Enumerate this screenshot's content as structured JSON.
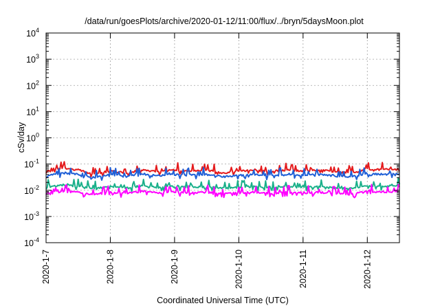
{
  "chart_data": {
    "type": "line",
    "title": "/data/run/goesPlots/archive/2020-01-12/11:00/flux/../bryn/5daysMoon.plot",
    "xlabel": "Coordinated Universal Time (UTC)",
    "ylabel": "cSv/day",
    "y_scale": "log",
    "ylim": [
      0.0001,
      10000
    ],
    "y_ticks": [
      {
        "value": 0.0001,
        "base": "10",
        "exp": "-4"
      },
      {
        "value": 0.001,
        "base": "10",
        "exp": "-3"
      },
      {
        "value": 0.01,
        "base": "10",
        "exp": "-2"
      },
      {
        "value": 0.1,
        "base": "10",
        "exp": "-1"
      },
      {
        "value": 1,
        "base": "10",
        "exp": "0"
      },
      {
        "value": 10,
        "base": "10",
        "exp": "1"
      },
      {
        "value": 100,
        "base": "10",
        "exp": "2"
      },
      {
        "value": 1000,
        "base": "10",
        "exp": "3"
      },
      {
        "value": 10000,
        "base": "10",
        "exp": "4"
      }
    ],
    "xlim_days": [
      0,
      5.5
    ],
    "x_ticks": [
      {
        "label": "2020-1-7",
        "day": 0
      },
      {
        "label": "2020-1-8",
        "day": 1
      },
      {
        "label": "2020-1-9",
        "day": 2
      },
      {
        "label": "2020-1-10",
        "day": 3
      },
      {
        "label": "2020-1-11",
        "day": 4
      },
      {
        "label": "2020-1-12",
        "day": 5
      }
    ],
    "grid": true,
    "series": [
      {
        "color": "#e41a1c",
        "x": [
          0,
          0.25,
          0.5,
          0.75,
          1,
          1.25,
          1.5,
          1.75,
          2,
          2.25,
          2.5,
          2.75,
          3,
          3.25,
          3.5,
          3.75,
          4,
          4.25,
          4.5,
          4.75,
          5,
          5.25,
          5.5
        ],
        "y": [
          0.05,
          0.07,
          0.06,
          0.04,
          0.055,
          0.045,
          0.06,
          0.05,
          0.06,
          0.055,
          0.06,
          0.045,
          0.055,
          0.06,
          0.05,
          0.06,
          0.055,
          0.06,
          0.05,
          0.045,
          0.065,
          0.06,
          0.07
        ]
      },
      {
        "color": "#1f5fd6",
        "x": [
          0,
          0.25,
          0.5,
          0.75,
          1,
          1.25,
          1.5,
          1.75,
          2,
          2.25,
          2.5,
          2.75,
          3,
          3.25,
          3.5,
          3.75,
          4,
          4.25,
          4.5,
          4.75,
          5,
          5.25,
          5.5
        ],
        "y": [
          0.035,
          0.045,
          0.04,
          0.03,
          0.04,
          0.033,
          0.042,
          0.036,
          0.04,
          0.038,
          0.04,
          0.033,
          0.037,
          0.04,
          0.035,
          0.04,
          0.037,
          0.04,
          0.035,
          0.032,
          0.045,
          0.04,
          0.045
        ]
      },
      {
        "color": "#1ab08a",
        "x": [
          0,
          0.25,
          0.5,
          0.75,
          1,
          1.25,
          1.5,
          1.75,
          2,
          2.25,
          2.5,
          2.75,
          3,
          3.25,
          3.5,
          3.75,
          4,
          4.25,
          4.5,
          4.75,
          5,
          5.25,
          5.5
        ],
        "y": [
          0.013,
          0.016,
          0.014,
          0.012,
          0.014,
          0.012,
          0.015,
          0.013,
          0.014,
          0.013,
          0.014,
          0.012,
          0.013,
          0.014,
          0.012,
          0.014,
          0.013,
          0.014,
          0.012,
          0.012,
          0.015,
          0.014,
          0.016
        ]
      },
      {
        "color": "#ff00ff",
        "x": [
          0,
          0.25,
          0.5,
          0.75,
          1,
          1.25,
          1.5,
          1.75,
          2,
          2.25,
          2.5,
          2.75,
          3,
          3.25,
          3.5,
          3.75,
          4,
          4.25,
          4.5,
          4.75,
          5,
          5.25,
          5.5
        ],
        "y": [
          0.008,
          0.009,
          0.0085,
          0.007,
          0.0085,
          0.0075,
          0.009,
          0.008,
          0.0085,
          0.008,
          0.0085,
          0.0075,
          0.008,
          0.0085,
          0.0075,
          0.0085,
          0.008,
          0.0085,
          0.0075,
          0.007,
          0.009,
          0.0085,
          0.009
        ]
      }
    ]
  }
}
